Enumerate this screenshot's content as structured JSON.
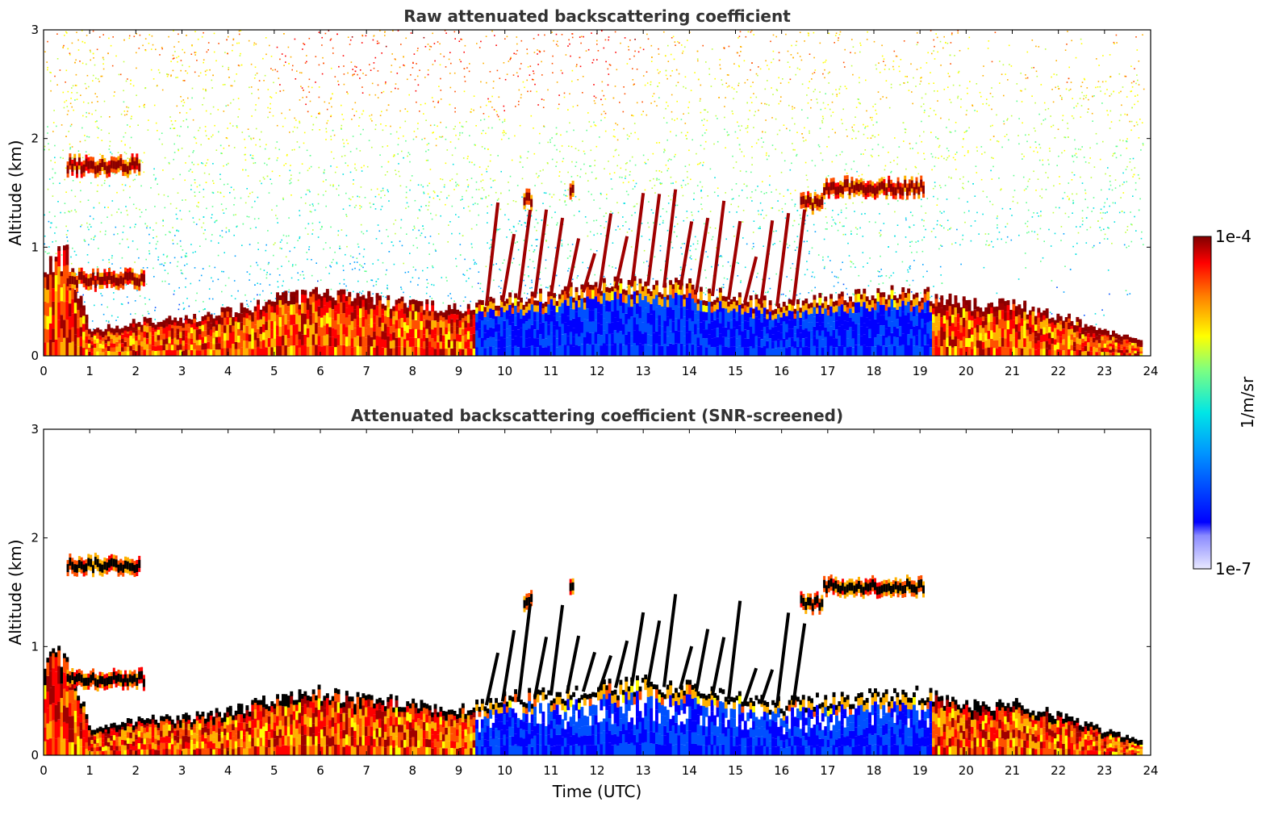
{
  "chart_data": [
    {
      "type": "heatmap",
      "title": "Raw attenuated backscattering coefficient",
      "xlabel": "",
      "ylabel": "Altitude (km)",
      "xlim": [
        0,
        24
      ],
      "ylim": [
        0,
        3
      ],
      "x_ticks": [
        "0",
        "1",
        "2",
        "3",
        "4",
        "5",
        "6",
        "7",
        "8",
        "9",
        "10",
        "11",
        "12",
        "13",
        "14",
        "15",
        "16",
        "17",
        "18",
        "19",
        "20",
        "21",
        "22",
        "23",
        "24"
      ],
      "y_ticks": [
        "0",
        "1",
        "2",
        "3"
      ],
      "screened": false,
      "layers": [
        {
          "x": [
            0.0,
            0.5,
            1.0,
            2.0,
            3.0,
            4.0,
            5.0,
            6.0,
            7.0,
            8.0,
            9.0,
            10.0,
            11.0,
            12.0,
            13.0,
            14.0,
            15.0,
            16.0,
            17.0,
            18.0,
            19.0,
            20.0,
            21.0,
            22.0,
            23.0,
            23.8
          ],
          "top": [
            0.85,
            0.9,
            0.2,
            0.3,
            0.32,
            0.38,
            0.5,
            0.55,
            0.5,
            0.45,
            0.4,
            0.5,
            0.55,
            0.6,
            0.65,
            0.6,
            0.5,
            0.45,
            0.5,
            0.55,
            0.55,
            0.45,
            0.45,
            0.35,
            0.2,
            0.12
          ]
        }
      ],
      "elevated_layers": [
        {
          "x_start": 0.5,
          "x_end": 2.1,
          "alt": 1.75
        },
        {
          "x_start": 0.5,
          "x_end": 2.2,
          "alt": 0.7
        },
        {
          "x_start": 10.4,
          "x_end": 10.6,
          "alt": 1.43
        },
        {
          "x_start": 11.4,
          "x_end": 11.5,
          "alt": 1.52
        },
        {
          "x_start": 16.4,
          "x_end": 16.9,
          "alt": 1.4
        },
        {
          "x_start": 16.9,
          "x_end": 19.1,
          "alt": 1.55
        }
      ],
      "colorbar": {
        "label": "1/m/sr",
        "min_label": "1e-7",
        "max_label": "1e-4",
        "scale": "log",
        "colormap": "jet"
      }
    },
    {
      "type": "heatmap",
      "title": "Attenuated backscattering coefficient (SNR-screened)",
      "xlabel": "Time (UTC)",
      "ylabel": "Altitude (km)",
      "xlim": [
        0,
        24
      ],
      "ylim": [
        0,
        3
      ],
      "x_ticks": [
        "0",
        "1",
        "2",
        "3",
        "4",
        "5",
        "6",
        "7",
        "8",
        "9",
        "10",
        "11",
        "12",
        "13",
        "14",
        "15",
        "16",
        "17",
        "18",
        "19",
        "20",
        "21",
        "22",
        "23",
        "24"
      ],
      "y_ticks": [
        "0",
        "1",
        "2",
        "3"
      ],
      "screened": true
    }
  ]
}
